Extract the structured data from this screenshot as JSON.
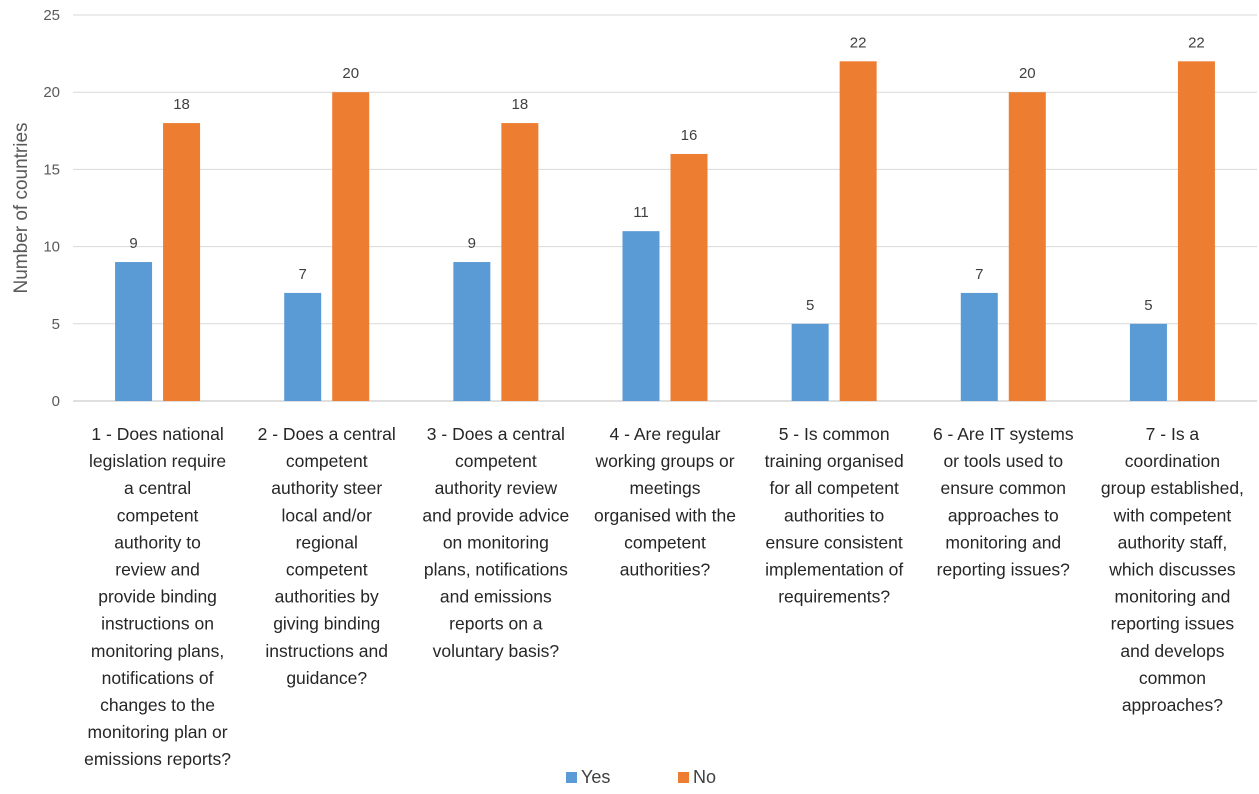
{
  "chart_data": {
    "type": "bar",
    "ylabel": "Number of countries",
    "xlabel": "",
    "ylim": [
      0,
      25
    ],
    "yticks": [
      0,
      5,
      10,
      15,
      20,
      25
    ],
    "grid": true,
    "legend_position": "bottom",
    "categories": [
      [
        "1 - Does national",
        "legislation require",
        "a central",
        "competent",
        "authority to",
        "review and",
        "provide binding",
        "instructions on",
        "monitoring plans,",
        "notifications of",
        "changes to the",
        "monitoring plan or",
        "emissions reports?"
      ],
      [
        "2 - Does a central",
        "competent",
        "authority steer",
        "local and/or",
        "regional",
        "competent",
        "authorities by",
        "giving binding",
        "instructions and",
        "guidance?"
      ],
      [
        "3 - Does a central",
        "competent",
        "authority review",
        "and provide advice",
        "on monitoring",
        "plans, notifications",
        "and emissions",
        "reports on a",
        "voluntary basis?"
      ],
      [
        "4 - Are regular",
        "working groups or",
        "meetings",
        "organised with the",
        "competent",
        "authorities?"
      ],
      [
        "5 - Is common",
        "training organised",
        "for all competent",
        "authorities to",
        "ensure consistent",
        "implementation of",
        "requirements?"
      ],
      [
        "6 - Are IT systems",
        "or tools used to",
        "ensure common",
        "approaches to",
        "monitoring and",
        "reporting issues?"
      ],
      [
        "7 - Is a",
        "coordination",
        "group established,",
        "with competent",
        "authority staff,",
        "which discusses",
        "monitoring and",
        "reporting issues",
        "and develops",
        "common",
        "approaches?"
      ]
    ],
    "series": [
      {
        "name": "Yes",
        "color": "#5B9BD5",
        "values": [
          9,
          7,
          9,
          11,
          5,
          7,
          5
        ]
      },
      {
        "name": "No",
        "color": "#ED7D31",
        "values": [
          18,
          20,
          18,
          16,
          22,
          20,
          22
        ]
      }
    ]
  }
}
